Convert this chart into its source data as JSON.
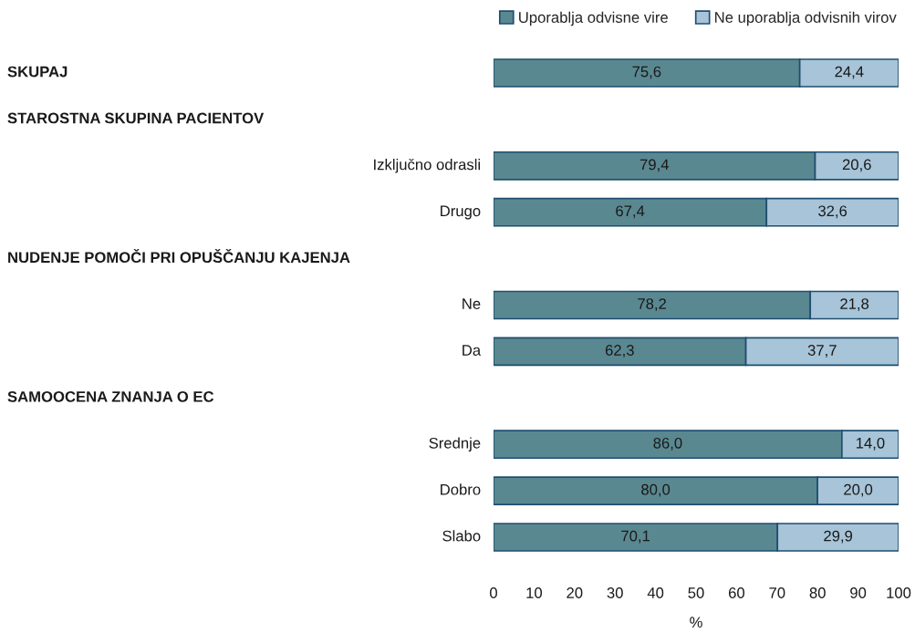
{
  "chart_data": {
    "type": "bar",
    "orientation": "horizontal",
    "stacked": true,
    "categories": [
      null,
      null,
      "Izključno odrasli",
      "Drugo",
      null,
      "Ne",
      "Da",
      null,
      "Srednje",
      "Dobro",
      "Slabo"
    ],
    "annotations": [
      "SKUPAJ",
      "STAROSTNA SKUPINA PACIENTOV",
      "NUDENJE POMOČI PRI OPUŠČANJU KAJENJA",
      "SAMOOCENA ZNANJA O EC"
    ],
    "series": [
      {
        "name": "Uporablja odvisne vire",
        "color": "#5a8891",
        "values": [
          75.6,
          null,
          79.4,
          67.4,
          null,
          78.2,
          62.3,
          null,
          86.0,
          80.0,
          70.1
        ],
        "value_labels": [
          "75,6",
          null,
          "79,4",
          "67,4",
          null,
          "78,2",
          "62,3",
          null,
          "86,0",
          "80,0",
          "70,1"
        ]
      },
      {
        "name": "Ne uporablja odvisnih virov",
        "color": "#a7c4d8",
        "values": [
          24.4,
          null,
          20.6,
          32.6,
          null,
          21.8,
          37.7,
          null,
          14.0,
          20.0,
          29.9
        ],
        "value_labels": [
          "24,4",
          null,
          "20,6",
          "32,6",
          null,
          "21,8",
          "37,7",
          null,
          "14,0",
          "20,0",
          "29,9"
        ]
      }
    ],
    "xlim": [
      0,
      100
    ],
    "xticks": [
      0,
      10,
      20,
      30,
      40,
      50,
      60,
      70,
      80,
      90,
      100
    ],
    "xlabel": "%",
    "legend": "top right",
    "grid": false
  }
}
